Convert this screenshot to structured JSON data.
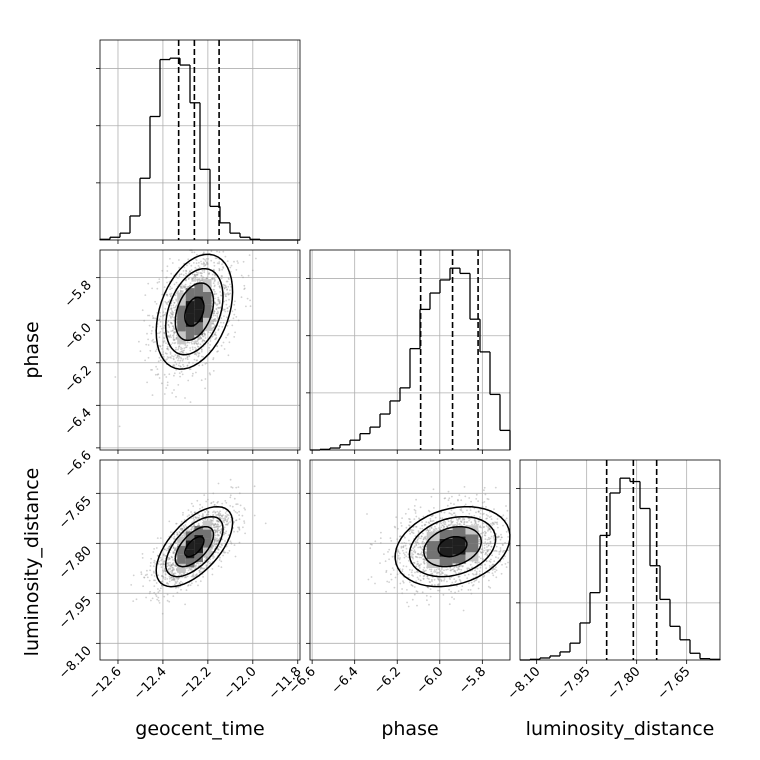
{
  "chart_data": {
    "type": "corner",
    "parameters": [
      "geocent_time",
      "phase",
      "luminosity_distance"
    ],
    "ranges": {
      "geocent_time": [
        -12.68,
        -11.79
      ],
      "phase": [
        -6.61,
        -5.67
      ],
      "luminosity_distance": [
        -8.15,
        -7.55
      ]
    },
    "ticks": {
      "geocent_time": [
        -12.6,
        -12.4,
        -12.2,
        -12.0,
        -11.8
      ],
      "phase": [
        -6.6,
        -6.4,
        -6.2,
        -6.0,
        -5.8
      ],
      "luminosity_distance": [
        -8.1,
        -7.95,
        -7.8,
        -7.65
      ]
    },
    "tick_labels": {
      "geocent_time": [
        "−12.6",
        "−12.4",
        "−12.2",
        "−12.0",
        "−11.8"
      ],
      "phase": [
        "−6.6",
        "−6.4",
        "−6.2",
        "−6.0",
        "−5.8"
      ],
      "luminosity_distance": [
        "−8.10",
        "−7.95",
        "−7.80",
        "−7.65"
      ]
    },
    "axis_labels": {
      "geocent_time": "geocent_time",
      "phase": "phase",
      "luminosity_distance": "luminosity_distance"
    },
    "quantiles": {
      "geocent_time": [
        -12.33,
        -12.26,
        -12.15
      ],
      "phase": [
        -6.09,
        -5.94,
        -5.82
      ],
      "luminosity_distance": [
        -7.89,
        -7.81,
        -7.74
      ]
    },
    "histograms": {
      "geocent_time": {
        "edges": [
          -12.68,
          -12.6355,
          -12.591,
          -12.5465,
          -12.502,
          -12.4575,
          -12.413,
          -12.3685,
          -12.324,
          -12.2795,
          -12.235,
          -12.1905,
          -12.146,
          -12.1015,
          -12.057,
          -12.0125,
          -11.968,
          -11.9235,
          -11.879,
          -11.8345,
          -11.79
        ],
        "counts": [
          1,
          4,
          10,
          35,
          90,
          180,
          263,
          265,
          255,
          200,
          103,
          49,
          25,
          10,
          4,
          1,
          0,
          0,
          0,
          0
        ]
      },
      "phase": {
        "edges": [
          -6.61,
          -6.563,
          -6.516,
          -6.469,
          -6.422,
          -6.375,
          -6.328,
          -6.281,
          -6.234,
          -6.187,
          -6.14,
          -6.093,
          -6.046,
          -5.999,
          -5.952,
          -5.905,
          -5.858,
          -5.811,
          -5.764,
          -5.717,
          -5.67
        ],
        "counts": [
          0,
          1,
          3,
          8,
          15,
          25,
          35,
          55,
          75,
          95,
          155,
          215,
          240,
          260,
          278,
          270,
          200,
          150,
          85,
          30
        ]
      },
      "luminosity_distance": {
        "edges": [
          -8.15,
          -8.12,
          -8.09,
          -8.06,
          -8.03,
          -8.0,
          -7.97,
          -7.94,
          -7.91,
          -7.88,
          -7.85,
          -7.82,
          -7.79,
          -7.76,
          -7.73,
          -7.7,
          -7.67,
          -7.64,
          -7.61,
          -7.58,
          -7.55
        ],
        "counts": [
          0,
          1,
          3,
          6,
          12,
          25,
          55,
          100,
          185,
          248,
          270,
          265,
          225,
          140,
          90,
          50,
          30,
          10,
          2,
          1
        ]
      }
    },
    "pairs": [
      {
        "x": "geocent_time",
        "y": "phase",
        "mean": [
          -12.26,
          -5.96
        ],
        "sd": [
          0.085,
          0.135
        ],
        "rho": 0.35
      },
      {
        "x": "geocent_time",
        "y": "luminosity_distance",
        "mean": [
          -12.26,
          -7.81
        ],
        "sd": [
          0.085,
          0.06
        ],
        "rho": 0.6
      },
      {
        "x": "phase",
        "y": "luminosity_distance",
        "mean": [
          -5.94,
          -7.81
        ],
        "sd": [
          0.135,
          0.06
        ],
        "rho": 0.25
      }
    ],
    "contour_levels_sigma": [
      0.5,
      1.0,
      1.5,
      2.0
    ],
    "grid": true
  }
}
